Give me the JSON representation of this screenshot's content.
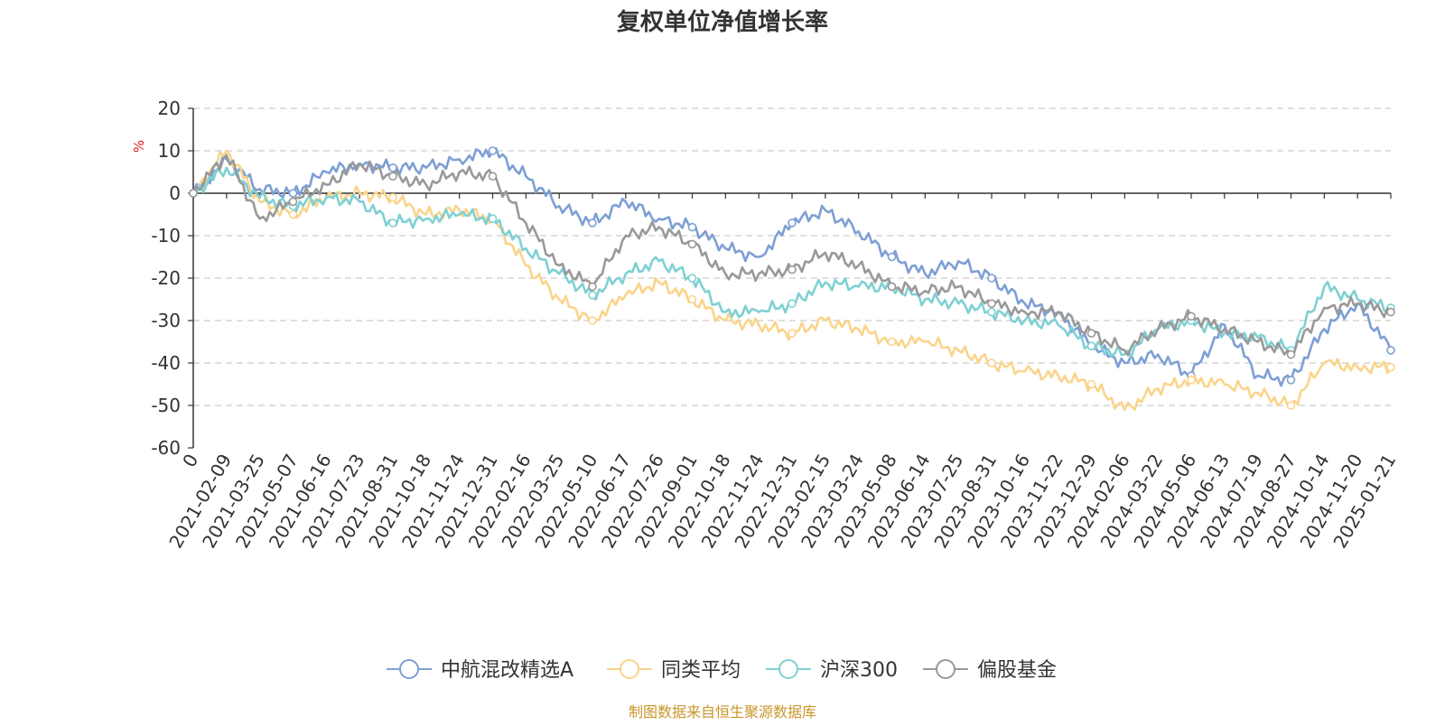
{
  "chart_data": {
    "type": "line",
    "title": "复权单位净值增长率",
    "ylabel": "%",
    "xlabel": "",
    "ylim": [
      -60,
      20
    ],
    "yticks": [
      20,
      10,
      0,
      -10,
      -20,
      -30,
      -40,
      -50,
      -60
    ],
    "grid": true,
    "legend_position": "bottom-center",
    "source_note": "制图数据来自恒生聚源数据库",
    "x_ticks": [
      "0",
      "2021-02-09",
      "2021-03-25",
      "2021-05-07",
      "2021-06-16",
      "2021-07-23",
      "2021-08-31",
      "2021-10-18",
      "2021-11-24",
      "2021-12-31",
      "2022-02-16",
      "2022-03-25",
      "2022-05-10",
      "2022-06-17",
      "2022-07-26",
      "2022-09-01",
      "2022-10-18",
      "2022-11-24",
      "2022-12-31",
      "2023-02-15",
      "2023-03-24",
      "2023-05-08",
      "2023-06-14",
      "2023-07-25",
      "2023-08-31",
      "2023-10-16",
      "2023-11-22",
      "2023-12-29",
      "2024-02-06",
      "2024-03-22",
      "2024-05-06",
      "2024-06-13",
      "2024-07-19",
      "2024-08-27",
      "2024-10-14",
      "2024-11-20",
      "2025-01-21"
    ],
    "series": [
      {
        "name": "中航混改精选A",
        "color": "#7e9fd4",
        "values": [
          0,
          8,
          1,
          0,
          5,
          7,
          6,
          6,
          8,
          10,
          4,
          -3,
          -7,
          -2,
          -6,
          -8,
          -13,
          -15,
          -7,
          -4,
          -9,
          -15,
          -19,
          -16,
          -20,
          -26,
          -28,
          -36,
          -40,
          -38,
          -43,
          -31,
          -43,
          -44,
          -32,
          -26,
          -37
        ]
      },
      {
        "name": "同类平均",
        "color": "#fad48b",
        "values": [
          0,
          10,
          -2,
          -5,
          -1,
          0,
          -1,
          -5,
          -4,
          -6,
          -17,
          -25,
          -30,
          -24,
          -21,
          -25,
          -30,
          -31,
          -33,
          -30,
          -32,
          -35,
          -35,
          -37,
          -40,
          -42,
          -43,
          -45,
          -51,
          -46,
          -44,
          -45,
          -47,
          -50,
          -40,
          -41,
          -41
        ]
      },
      {
        "name": "沪深300",
        "color": "#7fd0d3",
        "values": [
          0,
          6,
          -1,
          -3,
          -1,
          -2,
          -7,
          -6,
          -5,
          -6,
          -13,
          -19,
          -24,
          -19,
          -16,
          -20,
          -28,
          -28,
          -26,
          -21,
          -22,
          -22,
          -25,
          -26,
          -28,
          -30,
          -31,
          -36,
          -38,
          -32,
          -30,
          -33,
          -34,
          -37,
          -22,
          -25,
          -27
        ]
      },
      {
        "name": "偏股基金",
        "color": "#999999",
        "values": [
          0,
          9,
          -6,
          -2,
          2,
          7,
          4,
          2,
          5,
          4,
          -7,
          -17,
          -22,
          -10,
          -8,
          -12,
          -19,
          -19,
          -18,
          -14,
          -17,
          -22,
          -23,
          -22,
          -26,
          -28,
          -28,
          -33,
          -37,
          -32,
          -29,
          -32,
          -35,
          -38,
          -27,
          -26,
          -28
        ]
      }
    ]
  }
}
